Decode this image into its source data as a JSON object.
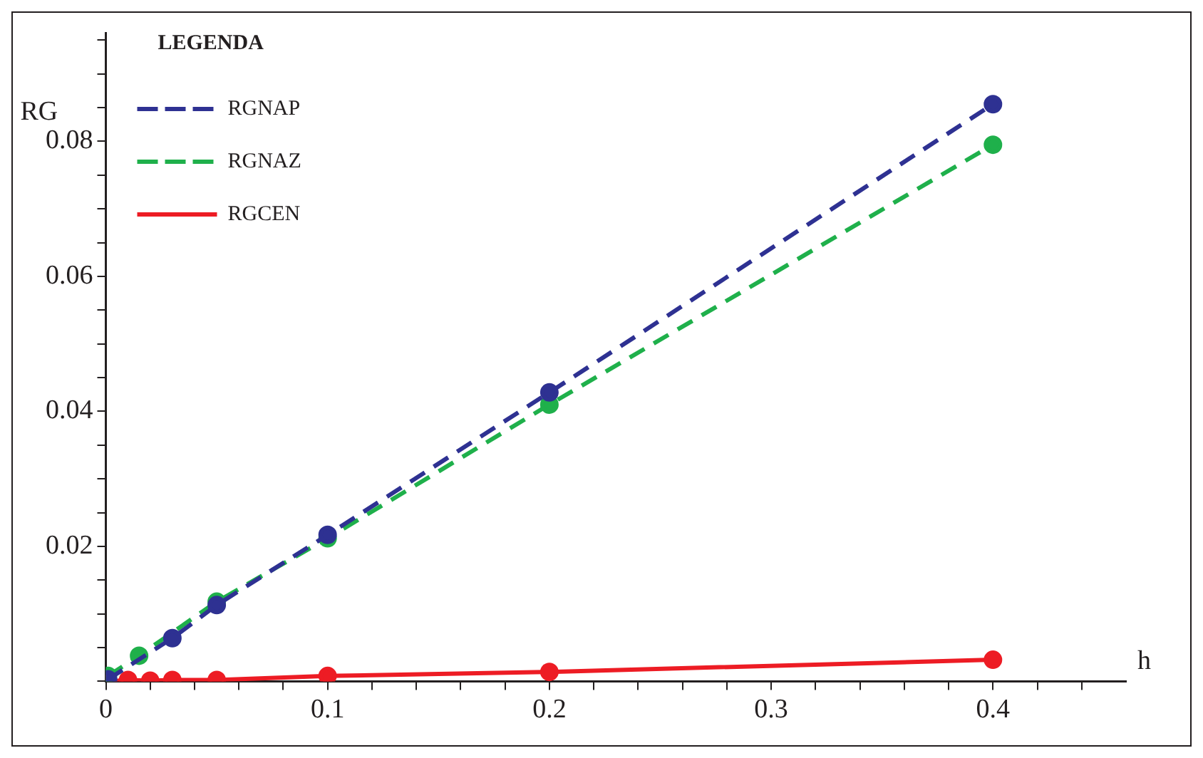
{
  "chart_data": {
    "type": "line",
    "xlabel": "h",
    "ylabel": "RG",
    "legend_title": "LEGENDA",
    "legend": "top left",
    "marker": "circle",
    "grid": false,
    "xlim": [
      0,
      0.46
    ],
    "ylim": [
      0,
      0.096
    ],
    "xticks": [
      0,
      {
        "value": 0.02,
        "label": null
      },
      {
        "value": 0.04,
        "label": null
      },
      {
        "value": 0.06,
        "label": null
      },
      {
        "value": 0.08,
        "label": null
      },
      0.1,
      {
        "value": 0.12,
        "label": null
      },
      {
        "value": 0.14,
        "label": null
      },
      {
        "value": 0.16,
        "label": null
      },
      {
        "value": 0.18,
        "label": null
      },
      0.2,
      {
        "value": 0.22,
        "label": null
      },
      {
        "value": 0.24,
        "label": null
      },
      {
        "value": 0.26,
        "label": null
      },
      {
        "value": 0.28,
        "label": null
      },
      0.3,
      {
        "value": 0.32,
        "label": null
      },
      {
        "value": 0.34,
        "label": null
      },
      {
        "value": 0.36,
        "label": null
      },
      {
        "value": 0.38,
        "label": null
      },
      0.4,
      {
        "value": 0.42,
        "label": null
      },
      {
        "value": 0.44,
        "label": null
      }
    ],
    "yticks": [
      {
        "value": 0,
        "label": null
      },
      {
        "value": 0.005,
        "label": null
      },
      {
        "value": 0.01,
        "label": null
      },
      {
        "value": 0.015,
        "label": null
      },
      0.02,
      {
        "value": 0.025,
        "label": null
      },
      {
        "value": 0.03,
        "label": null
      },
      {
        "value": 0.035,
        "label": null
      },
      0.04,
      {
        "value": 0.045,
        "label": null
      },
      {
        "value": 0.05,
        "label": null
      },
      {
        "value": 0.055,
        "label": null
      },
      0.06,
      {
        "value": 0.065,
        "label": null
      },
      {
        "value": 0.07,
        "label": null
      },
      {
        "value": 0.075,
        "label": null
      },
      0.08,
      {
        "value": 0.085,
        "label": null
      },
      {
        "value": 0.09,
        "label": null
      },
      {
        "value": 0.095,
        "label": null
      }
    ],
    "series": [
      {
        "name": "RGNAP",
        "color": "#2e3192",
        "line_style": "dashed",
        "x": [
          0.001,
          0.03,
          0.05,
          0.1,
          0.2,
          0.4
        ],
        "values": [
          0.0003,
          0.0064,
          0.0113,
          0.0217,
          0.0428,
          0.0855
        ]
      },
      {
        "name": "RGNAZ",
        "color": "#1fb04b",
        "line_style": "dashed",
        "x": [
          0.001,
          0.015,
          0.05,
          0.1,
          0.2,
          0.4
        ],
        "values": [
          0.0008,
          0.0038,
          0.0118,
          0.0212,
          0.041,
          0.0795
        ]
      },
      {
        "name": "RGCEN",
        "color": "#ed1c24",
        "line_style": "solid",
        "x": [
          0.001,
          0.01,
          0.02,
          0.03,
          0.05,
          0.1,
          0.2,
          0.4
        ],
        "values": [
          0,
          0.0002,
          0.0001,
          0.0002,
          0.0002,
          0.0008,
          0.0014,
          0.0032
        ]
      }
    ]
  }
}
